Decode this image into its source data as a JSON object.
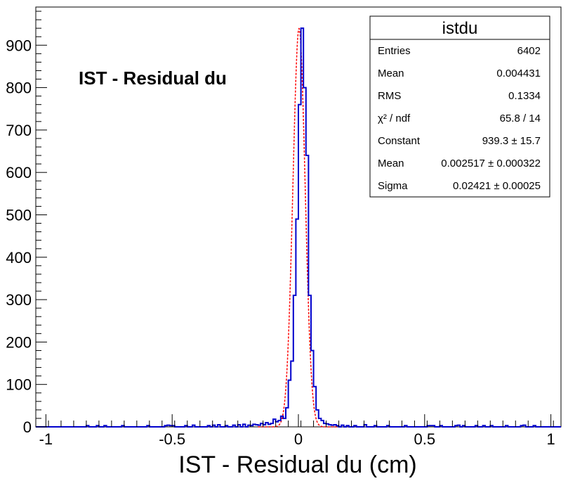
{
  "chart_data": {
    "type": "histogram",
    "xlabel": "IST - Residual du (cm)",
    "ylabel": "",
    "annotation": "IST - Residual du",
    "xlim": [
      -1.04,
      1.04
    ],
    "ylim": [
      0,
      990
    ],
    "x_ticks": [
      -1,
      -0.5,
      0,
      0.5,
      1
    ],
    "x_tick_labels": [
      "-1",
      "-0.5",
      "0",
      "0.5",
      "1"
    ],
    "y_ticks": [
      0,
      100,
      200,
      300,
      400,
      500,
      600,
      700,
      800,
      900
    ],
    "y_tick_labels": [
      "0",
      "100",
      "200",
      "300",
      "400",
      "500",
      "600",
      "700",
      "800",
      "900"
    ],
    "bin_width": 0.01,
    "histogram_color": "#0000cc",
    "fit_color": "#ff0000",
    "bins": [
      {
        "x": -0.84,
        "y": 3
      },
      {
        "x": -0.8,
        "y": 3
      },
      {
        "x": -0.77,
        "y": 3
      },
      {
        "x": -0.7,
        "y": 3
      },
      {
        "x": -0.6,
        "y": 3
      },
      {
        "x": -0.53,
        "y": 3
      },
      {
        "x": -0.52,
        "y": 4
      },
      {
        "x": -0.51,
        "y": 3
      },
      {
        "x": -0.5,
        "y": 3
      },
      {
        "x": -0.45,
        "y": 3
      },
      {
        "x": -0.42,
        "y": 4
      },
      {
        "x": -0.36,
        "y": 3
      },
      {
        "x": -0.34,
        "y": 4
      },
      {
        "x": -0.32,
        "y": 5
      },
      {
        "x": -0.29,
        "y": 3
      },
      {
        "x": -0.26,
        "y": 4
      },
      {
        "x": -0.24,
        "y": 5
      },
      {
        "x": -0.22,
        "y": 6
      },
      {
        "x": -0.2,
        "y": 4
      },
      {
        "x": -0.19,
        "y": 3
      },
      {
        "x": -0.18,
        "y": 6
      },
      {
        "x": -0.17,
        "y": 5
      },
      {
        "x": -0.16,
        "y": 4
      },
      {
        "x": -0.15,
        "y": 8
      },
      {
        "x": -0.14,
        "y": 5
      },
      {
        "x": -0.13,
        "y": 10
      },
      {
        "x": -0.12,
        "y": 6
      },
      {
        "x": -0.11,
        "y": 8
      },
      {
        "x": -0.1,
        "y": 18
      },
      {
        "x": -0.09,
        "y": 12
      },
      {
        "x": -0.08,
        "y": 15
      },
      {
        "x": -0.07,
        "y": 25
      },
      {
        "x": -0.06,
        "y": 20
      },
      {
        "x": -0.05,
        "y": 45
      },
      {
        "x": -0.04,
        "y": 110
      },
      {
        "x": -0.03,
        "y": 155
      },
      {
        "x": -0.02,
        "y": 310
      },
      {
        "x": -0.01,
        "y": 490
      },
      {
        "x": 0.0,
        "y": 760
      },
      {
        "x": 0.01,
        "y": 940
      },
      {
        "x": 0.02,
        "y": 800
      },
      {
        "x": 0.03,
        "y": 640
      },
      {
        "x": 0.04,
        "y": 310
      },
      {
        "x": 0.05,
        "y": 180
      },
      {
        "x": 0.06,
        "y": 95
      },
      {
        "x": 0.07,
        "y": 40
      },
      {
        "x": 0.08,
        "y": 20
      },
      {
        "x": 0.09,
        "y": 15
      },
      {
        "x": 0.1,
        "y": 8
      },
      {
        "x": 0.11,
        "y": 7
      },
      {
        "x": 0.12,
        "y": 5
      },
      {
        "x": 0.13,
        "y": 4
      },
      {
        "x": 0.14,
        "y": 5
      },
      {
        "x": 0.15,
        "y": 3
      },
      {
        "x": 0.17,
        "y": 4
      },
      {
        "x": 0.19,
        "y": 3
      },
      {
        "x": 0.22,
        "y": 3
      },
      {
        "x": 0.26,
        "y": 5
      },
      {
        "x": 0.3,
        "y": 3
      },
      {
        "x": 0.35,
        "y": 3
      },
      {
        "x": 0.42,
        "y": 3
      },
      {
        "x": 0.51,
        "y": 3
      },
      {
        "x": 0.52,
        "y": 3
      },
      {
        "x": 0.53,
        "y": 3
      },
      {
        "x": 0.56,
        "y": 3
      },
      {
        "x": 0.62,
        "y": 3
      },
      {
        "x": 0.63,
        "y": 4
      },
      {
        "x": 0.65,
        "y": 3
      },
      {
        "x": 0.7,
        "y": 3
      },
      {
        "x": 0.73,
        "y": 3
      },
      {
        "x": 0.76,
        "y": 3
      },
      {
        "x": 0.82,
        "y": 3
      },
      {
        "x": 0.88,
        "y": 3
      },
      {
        "x": 0.89,
        "y": 4
      },
      {
        "x": 0.93,
        "y": 3
      }
    ],
    "fit": {
      "function": "gaus",
      "constant": 939.3,
      "mean": 0.002517,
      "sigma": 0.02421
    },
    "stats_box": {
      "title": "istdu",
      "rows": [
        {
          "label": "Entries",
          "value": "6402"
        },
        {
          "label": "Mean",
          "value": "0.004431"
        },
        {
          "label": "RMS",
          "value": "0.1334"
        },
        {
          "label": "χ² / ndf",
          "value": "65.8 / 14"
        },
        {
          "label": "Constant",
          "value": "939.3 ± 15.7"
        },
        {
          "label": "Mean",
          "value": "0.002517 ± 0.000322"
        },
        {
          "label": "Sigma",
          "value": "0.02421 ± 0.00025"
        }
      ]
    }
  }
}
